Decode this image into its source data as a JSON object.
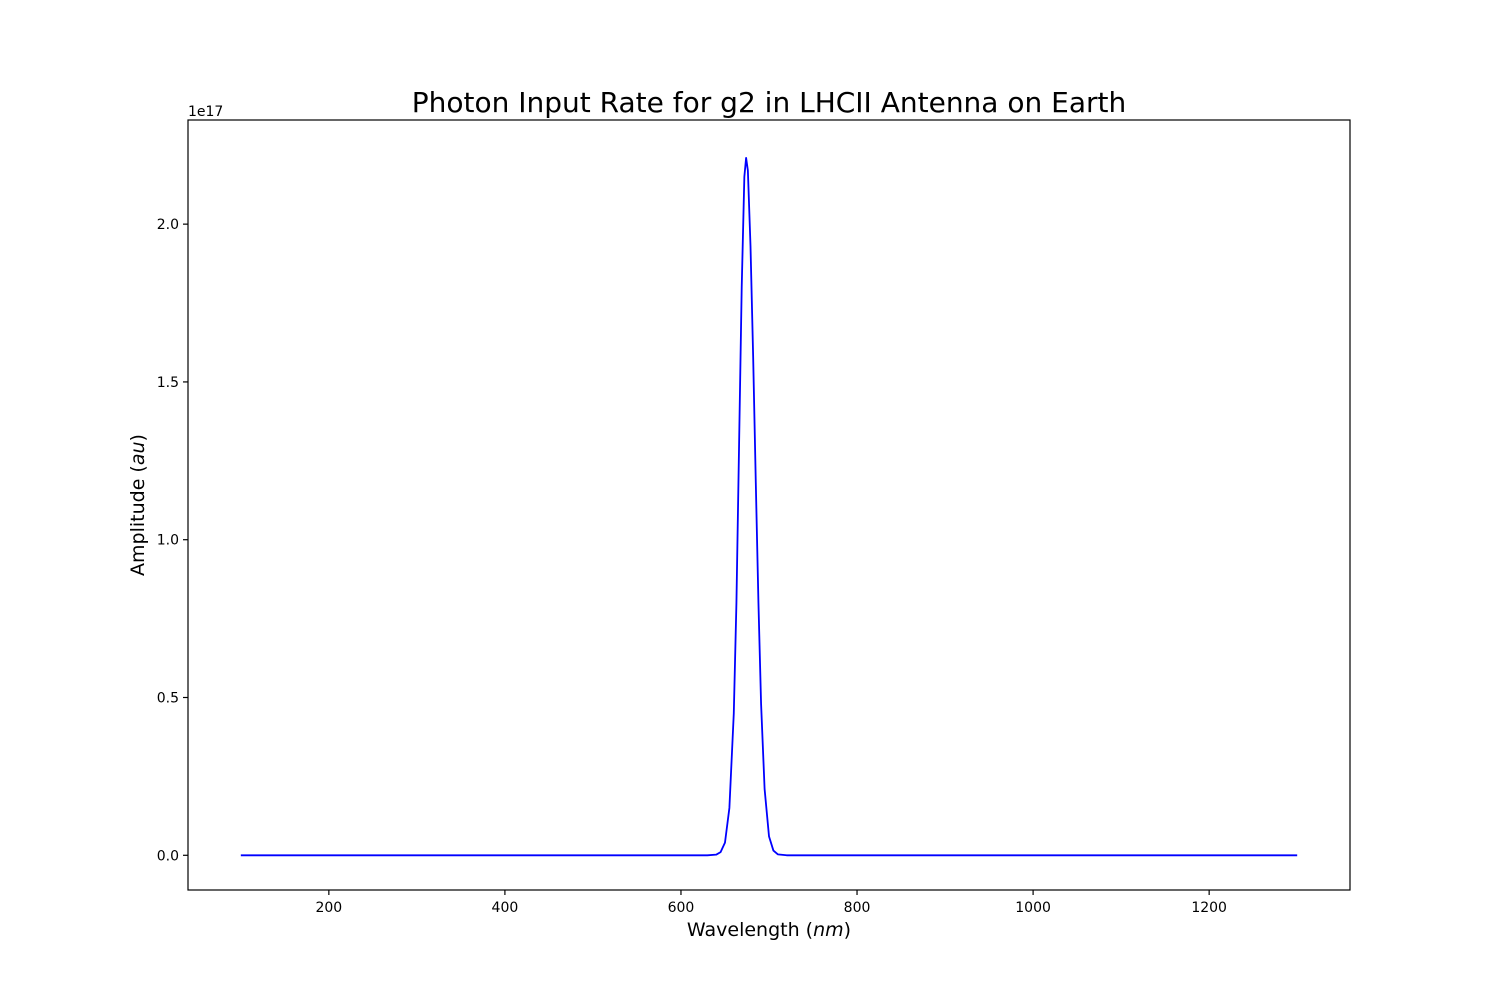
{
  "chart_data": {
    "type": "line",
    "title": "Photon Input Rate for g2 in LHCII Antenna on Earth",
    "xlabel_text": "Wavelength (",
    "xlabel_unit": "nm",
    "xlabel_close": ")",
    "ylabel_text": "Amplitude (",
    "ylabel_unit": "au",
    "ylabel_close": ")",
    "y_offset_label": "1e17",
    "y_scale": 1e+17,
    "xlim": [
      40,
      1360
    ],
    "ylim": [
      -0.11,
      2.33
    ],
    "grid": false,
    "legend": "none",
    "x_ticks": [
      200,
      400,
      600,
      800,
      1000,
      1200
    ],
    "x_tick_labels": [
      "200",
      "400",
      "600",
      "800",
      "1000",
      "1200"
    ],
    "y_ticks": [
      0.0,
      0.5,
      1.0,
      1.5,
      2.0
    ],
    "y_tick_labels": [
      "0.0",
      "0.5",
      "1.0",
      "1.5",
      "2.0"
    ],
    "series": [
      {
        "color": "#0000ff",
        "x": [
          100,
          200,
          300,
          400,
          500,
          600,
          620,
          630,
          640,
          645,
          650,
          655,
          660,
          663,
          666,
          669,
          672,
          674,
          676,
          679,
          682,
          685,
          688,
          691,
          695,
          700,
          705,
          710,
          720,
          730,
          750,
          800,
          900,
          1000,
          1100,
          1200,
          1300
        ],
        "y": [
          0.0,
          0.0,
          0.0,
          0.0,
          0.0,
          0.0,
          0.0,
          0.0,
          0.002,
          0.01,
          0.04,
          0.15,
          0.45,
          0.8,
          1.3,
          1.8,
          2.15,
          2.21,
          2.17,
          1.93,
          1.58,
          1.18,
          0.8,
          0.48,
          0.21,
          0.06,
          0.015,
          0.003,
          0.0,
          0.0,
          0.0,
          0.0,
          0.0,
          0.0,
          0.0,
          0.0,
          0.0
        ]
      }
    ]
  }
}
